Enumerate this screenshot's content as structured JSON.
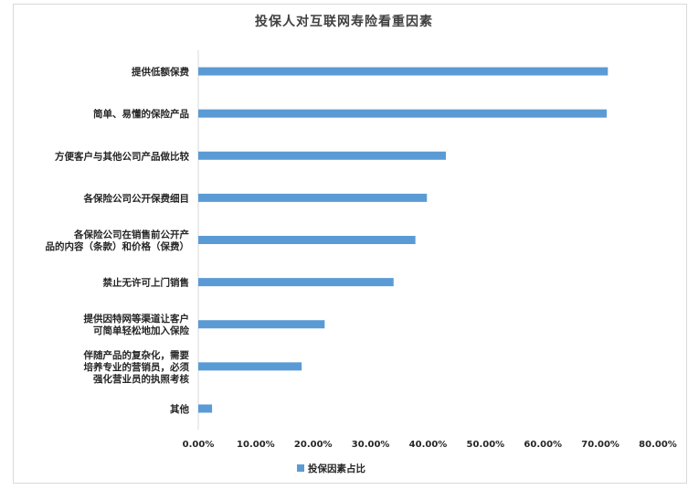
{
  "chart_data": {
    "type": "bar",
    "orientation": "horizontal",
    "title": "投保人对互联网寿险看重因素",
    "categories": [
      [
        "提供低额保费"
      ],
      [
        "简单、易懂的保险产品"
      ],
      [
        "方便客户与其他公司产品做比较"
      ],
      [
        "各保险公司公开保费细目"
      ],
      [
        "各保险公司在销售前公开产",
        "品的内容（条款）和价格（保费）"
      ],
      [
        "禁止无许可上门销售"
      ],
      [
        "提供因特网等渠道让客户",
        "可简单轻松地加入保险"
      ],
      [
        "伴随产品的复杂化，需要",
        "培养专业的营销员，必须",
        "强化营业员的执照考核"
      ],
      [
        "其他"
      ]
    ],
    "series": [
      {
        "name": "投保因素占比",
        "color": "#5b9bd5",
        "values": [
          0.713,
          0.711,
          0.431,
          0.398,
          0.378,
          0.34,
          0.22,
          0.18,
          0.024
        ]
      }
    ],
    "xlim": [
      0,
      0.8
    ],
    "xticks": [
      "0.00%",
      "10.00%",
      "20.00%",
      "30.00%",
      "40.00%",
      "50.00%",
      "60.00%",
      "70.00%",
      "80.00%"
    ],
    "grid": false,
    "legend_position": "bottom"
  }
}
